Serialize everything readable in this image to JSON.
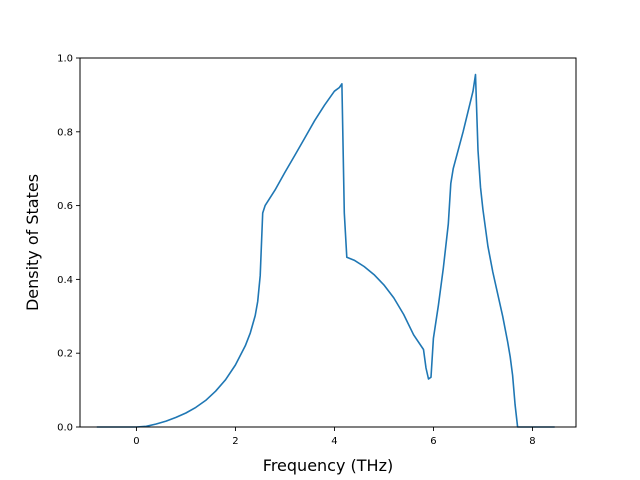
{
  "chart_data": {
    "type": "line",
    "title": "",
    "xlabel": "Frequency (THz)",
    "ylabel": "Density of States",
    "xlim": [
      -1.14,
      8.88
    ],
    "ylim": [
      0.0,
      1.0
    ],
    "xticks": [
      0,
      2,
      4,
      6,
      8
    ],
    "xtick_labels": [
      "0",
      "2",
      "4",
      "6",
      "8"
    ],
    "yticks": [
      0.0,
      0.2,
      0.4,
      0.6,
      0.8,
      1.0
    ],
    "ytick_labels": [
      "0.0",
      "0.2",
      "0.4",
      "0.6",
      "0.8",
      "1.0"
    ],
    "grid": false,
    "legend": "none",
    "series": [
      {
        "color": "#1f77b4",
        "x": [
          -0.8,
          -0.4,
          0.0,
          0.2,
          0.4,
          0.6,
          0.8,
          1.0,
          1.2,
          1.4,
          1.6,
          1.8,
          2.0,
          2.2,
          2.3,
          2.4,
          2.45,
          2.5,
          2.55,
          2.6,
          2.8,
          3.0,
          3.2,
          3.4,
          3.6,
          3.8,
          4.0,
          4.1,
          4.15,
          4.2,
          4.25,
          4.4,
          4.6,
          4.8,
          5.0,
          5.2,
          5.4,
          5.6,
          5.8,
          5.85,
          5.9,
          5.95,
          6.0,
          6.1,
          6.2,
          6.3,
          6.35,
          6.4,
          6.6,
          6.8,
          6.85,
          6.9,
          6.95,
          7.0,
          7.1,
          7.2,
          7.4,
          7.5,
          7.55,
          7.6,
          7.65,
          7.7,
          8.0,
          8.45
        ],
        "y": [
          0.0,
          0.0,
          0.0,
          0.002,
          0.008,
          0.016,
          0.026,
          0.038,
          0.053,
          0.072,
          0.097,
          0.128,
          0.168,
          0.22,
          0.255,
          0.302,
          0.34,
          0.41,
          0.58,
          0.6,
          0.642,
          0.69,
          0.736,
          0.783,
          0.83,
          0.872,
          0.91,
          0.92,
          0.93,
          0.58,
          0.46,
          0.452,
          0.435,
          0.413,
          0.385,
          0.35,
          0.305,
          0.25,
          0.21,
          0.16,
          0.13,
          0.135,
          0.24,
          0.33,
          0.43,
          0.55,
          0.66,
          0.7,
          0.8,
          0.91,
          0.955,
          0.75,
          0.65,
          0.59,
          0.49,
          0.42,
          0.3,
          0.23,
          0.19,
          0.14,
          0.06,
          0.0,
          0.0,
          0.0
        ]
      }
    ]
  }
}
